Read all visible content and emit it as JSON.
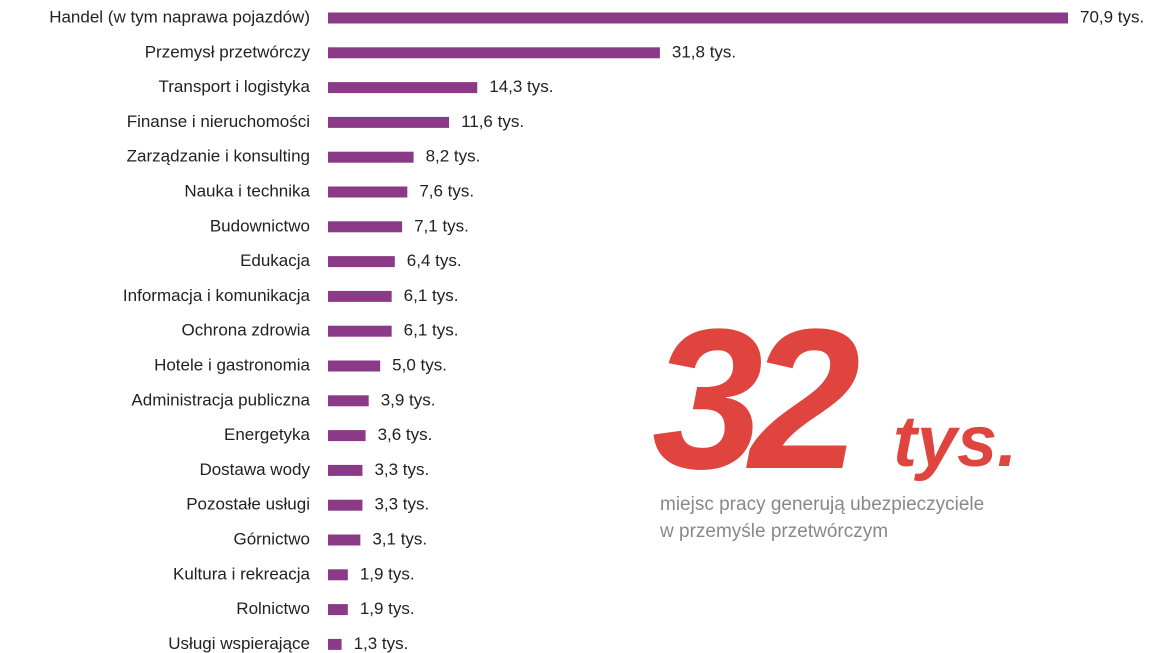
{
  "chart_data": {
    "type": "bar",
    "orientation": "horizontal",
    "color": "#8a3a86",
    "categories": [
      "Handel (w tym naprawa pojazdów)",
      "Przemysł przetwórczy",
      "Transport i logistyka",
      "Finanse i nieruchomości",
      "Zarządzanie i konsulting",
      "Nauka i technika",
      "Budownictwo",
      "Edukacja",
      "Informacja i komunikacja",
      "Ochrona zdrowia",
      "Hotele i gastronomia",
      "Administracja publiczna",
      "Energetyka",
      "Dostawa wody",
      "Pozostałe usługi",
      "Górnictwo",
      "Kultura i rekreacja",
      "Rolnictwo",
      "Usługi wspierające"
    ],
    "values": [
      70.9,
      31.8,
      14.3,
      11.6,
      8.2,
      7.6,
      7.1,
      6.4,
      6.1,
      6.1,
      5.0,
      3.9,
      3.6,
      3.3,
      3.3,
      3.1,
      1.9,
      1.9,
      1.3
    ],
    "value_labels": [
      "70,9 tys.",
      "31,8 tys.",
      "14,3 tys.",
      "11,6 tys.",
      "8,2 tys.",
      "7,6 tys.",
      "7,1 tys.",
      "6,4 tys.",
      "6,1 tys.",
      "6,1 tys.",
      "5,0 tys.",
      "3,9 tys.",
      "3,6 tys.",
      "3,3 tys.",
      "3,3 tys.",
      "3,1 tys.",
      "1,9 tys.",
      "1,9 tys.",
      "1,3 tys."
    ],
    "annotations": {
      "number": "32",
      "unit": "tys.",
      "color": "#e0443f",
      "text": [
        "miejsc pracy generują ubezpieczyciele",
        "w przemyśle przetwórczym"
      ]
    }
  }
}
